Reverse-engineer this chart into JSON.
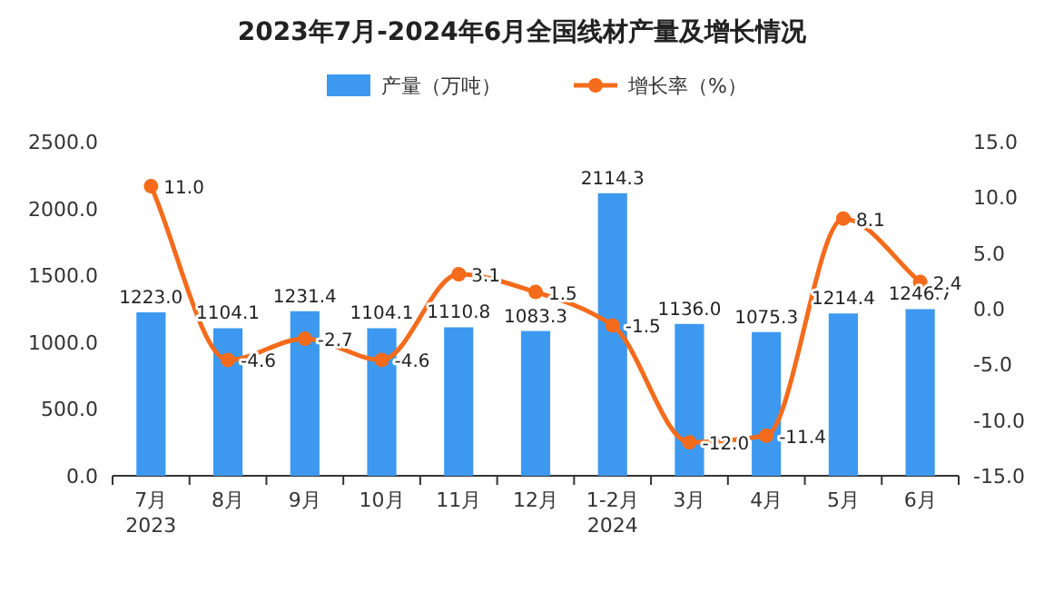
{
  "chart_data": {
    "type": "bar",
    "title": "2023年7月-2024年6月全国线材产量及增长情况",
    "categories": [
      "7月\n2023",
      "8月",
      "9月",
      "10月",
      "11月",
      "12月",
      "1-2月\n2024",
      "3月",
      "4月",
      "5月",
      "6月"
    ],
    "series": [
      {
        "name": "产量（万吨）",
        "color": "#3d99f0",
        "values": [
          1223,
          1104.1,
          1231.4,
          1104.1,
          1110.8,
          1083.3,
          2114.3,
          1136,
          1075.3,
          1214.4,
          1246.7
        ],
        "value_labels": [
          "1223.0",
          "1104.1",
          "1231.4",
          "1104.1",
          "1110.8",
          "1083.3",
          "2114.3",
          "1136.0",
          "1075.3",
          "1214.4",
          "1246.7"
        ]
      },
      {
        "name": "增长率（%）",
        "type": "line",
        "axis": "y2",
        "color": "#f46b1b",
        "marker": "circle",
        "values": [
          11,
          -4.6,
          -2.7,
          -4.6,
          3.1,
          1.5,
          -1.5,
          -12,
          -11.4,
          8.1,
          2.4
        ],
        "value_labels": [
          "11.0",
          "-4.6",
          "-2.7",
          "-4.6",
          "3.1",
          "1.5",
          "-1.5",
          "-12.0",
          "-11.4",
          "8.1",
          "2.4"
        ]
      }
    ],
    "ylim": [
      0,
      2500
    ],
    "yticks": [
      {
        "value": 0,
        "label": "0.0"
      },
      {
        "value": 500,
        "label": "500.0"
      },
      {
        "value": 1000,
        "label": "1000.0"
      },
      {
        "value": 1500,
        "label": "1500.0"
      },
      {
        "value": 2000,
        "label": "2000.0"
      },
      {
        "value": 2500,
        "label": "2500.0"
      }
    ],
    "y2lim": [
      -15,
      15
    ],
    "y2ticks": [
      {
        "value": -15,
        "label": "-15.0"
      },
      {
        "value": -10,
        "label": "-10.0"
      },
      {
        "value": -5,
        "label": "-5.0"
      },
      {
        "value": 0,
        "label": "0.0"
      },
      {
        "value": 5,
        "label": "5.0"
      },
      {
        "value": 10,
        "label": "10.0"
      },
      {
        "value": 15,
        "label": "15.0"
      }
    ],
    "legend": "top",
    "grid": false
  }
}
